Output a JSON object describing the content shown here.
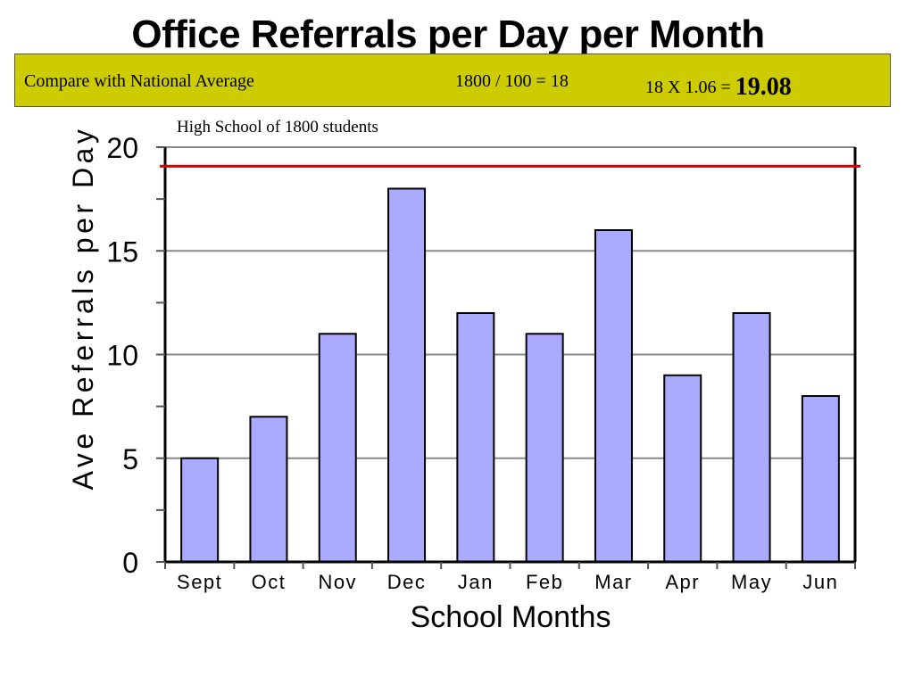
{
  "page": {
    "title": "Office Referrals per Day per Month"
  },
  "banner": {
    "compare_label": "Compare with National Average",
    "calc_one": "1800 / 100  = 18",
    "calc_two": "18 X 1.06  = ",
    "result": "19.08"
  },
  "colors": {
    "bar_fill": "#aaaaff",
    "bar_stroke": "#000000",
    "reference_line": "#dd0000",
    "gridline": "#888888",
    "banner_bg": "#cccc00"
  },
  "chart_data": {
    "type": "bar",
    "title": "High School of 1800 students",
    "xlabel": "School Months",
    "ylabel": "Ave Referrals per Day",
    "categories": [
      "Sept",
      "Oct",
      "Nov",
      "Dec",
      "Jan",
      "Feb",
      "Mar",
      "Apr",
      "May",
      "Jun"
    ],
    "series": [
      {
        "values": [
          5,
          7,
          11,
          18,
          12,
          11,
          16,
          9,
          12,
          8
        ]
      }
    ],
    "ylim": [
      0,
      20
    ],
    "yticks": [
      0,
      5,
      10,
      15,
      20
    ],
    "reference_line": {
      "value": 19.08
    },
    "grid": true,
    "legend": "none"
  }
}
